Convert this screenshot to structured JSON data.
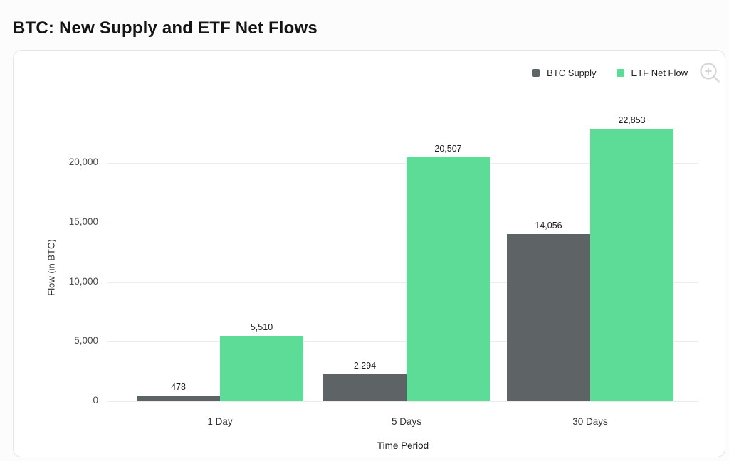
{
  "page": {
    "title": "BTC: New Supply and ETF Net Flows"
  },
  "legend": {
    "items": [
      {
        "label": "BTC Supply",
        "color": "#5E6366"
      },
      {
        "label": "ETF Net Flow",
        "color": "#5DDC97"
      }
    ]
  },
  "icons": {
    "zoom_in": "magnifier-plus-icon"
  },
  "colors": {
    "btc_supply": "#5E6366",
    "etf_net_flow": "#5DDC97",
    "gridline": "#ececec",
    "panel_border": "#e6e6e6",
    "panel_background": "#ffffff"
  },
  "chart_data": {
    "type": "bar",
    "title": "BTC: New Supply and ETF Net Flows",
    "categories": [
      "1 Day",
      "5 Days",
      "30 Days"
    ],
    "series": [
      {
        "name": "BTC Supply",
        "color": "#5E6366",
        "values": [
          478,
          2294,
          14056
        ]
      },
      {
        "name": "ETF Net Flow",
        "color": "#5DDC97",
        "values": [
          5510,
          20507,
          22853
        ]
      }
    ],
    "value_labels_shown": [
      "478",
      "5,510",
      "2,294",
      "20,507",
      "14,056",
      "22,853"
    ],
    "xlabel": "Time Period",
    "ylabel": "Flow (in BTC)",
    "yticks": [
      0,
      5000,
      10000,
      15000,
      20000
    ],
    "ytick_labels": [
      "0",
      "5,000",
      "10,000",
      "15,000",
      "20,000"
    ],
    "ylim": [
      0,
      25000
    ],
    "grid": true,
    "legend_position": "top-right",
    "value_labels": true
  }
}
